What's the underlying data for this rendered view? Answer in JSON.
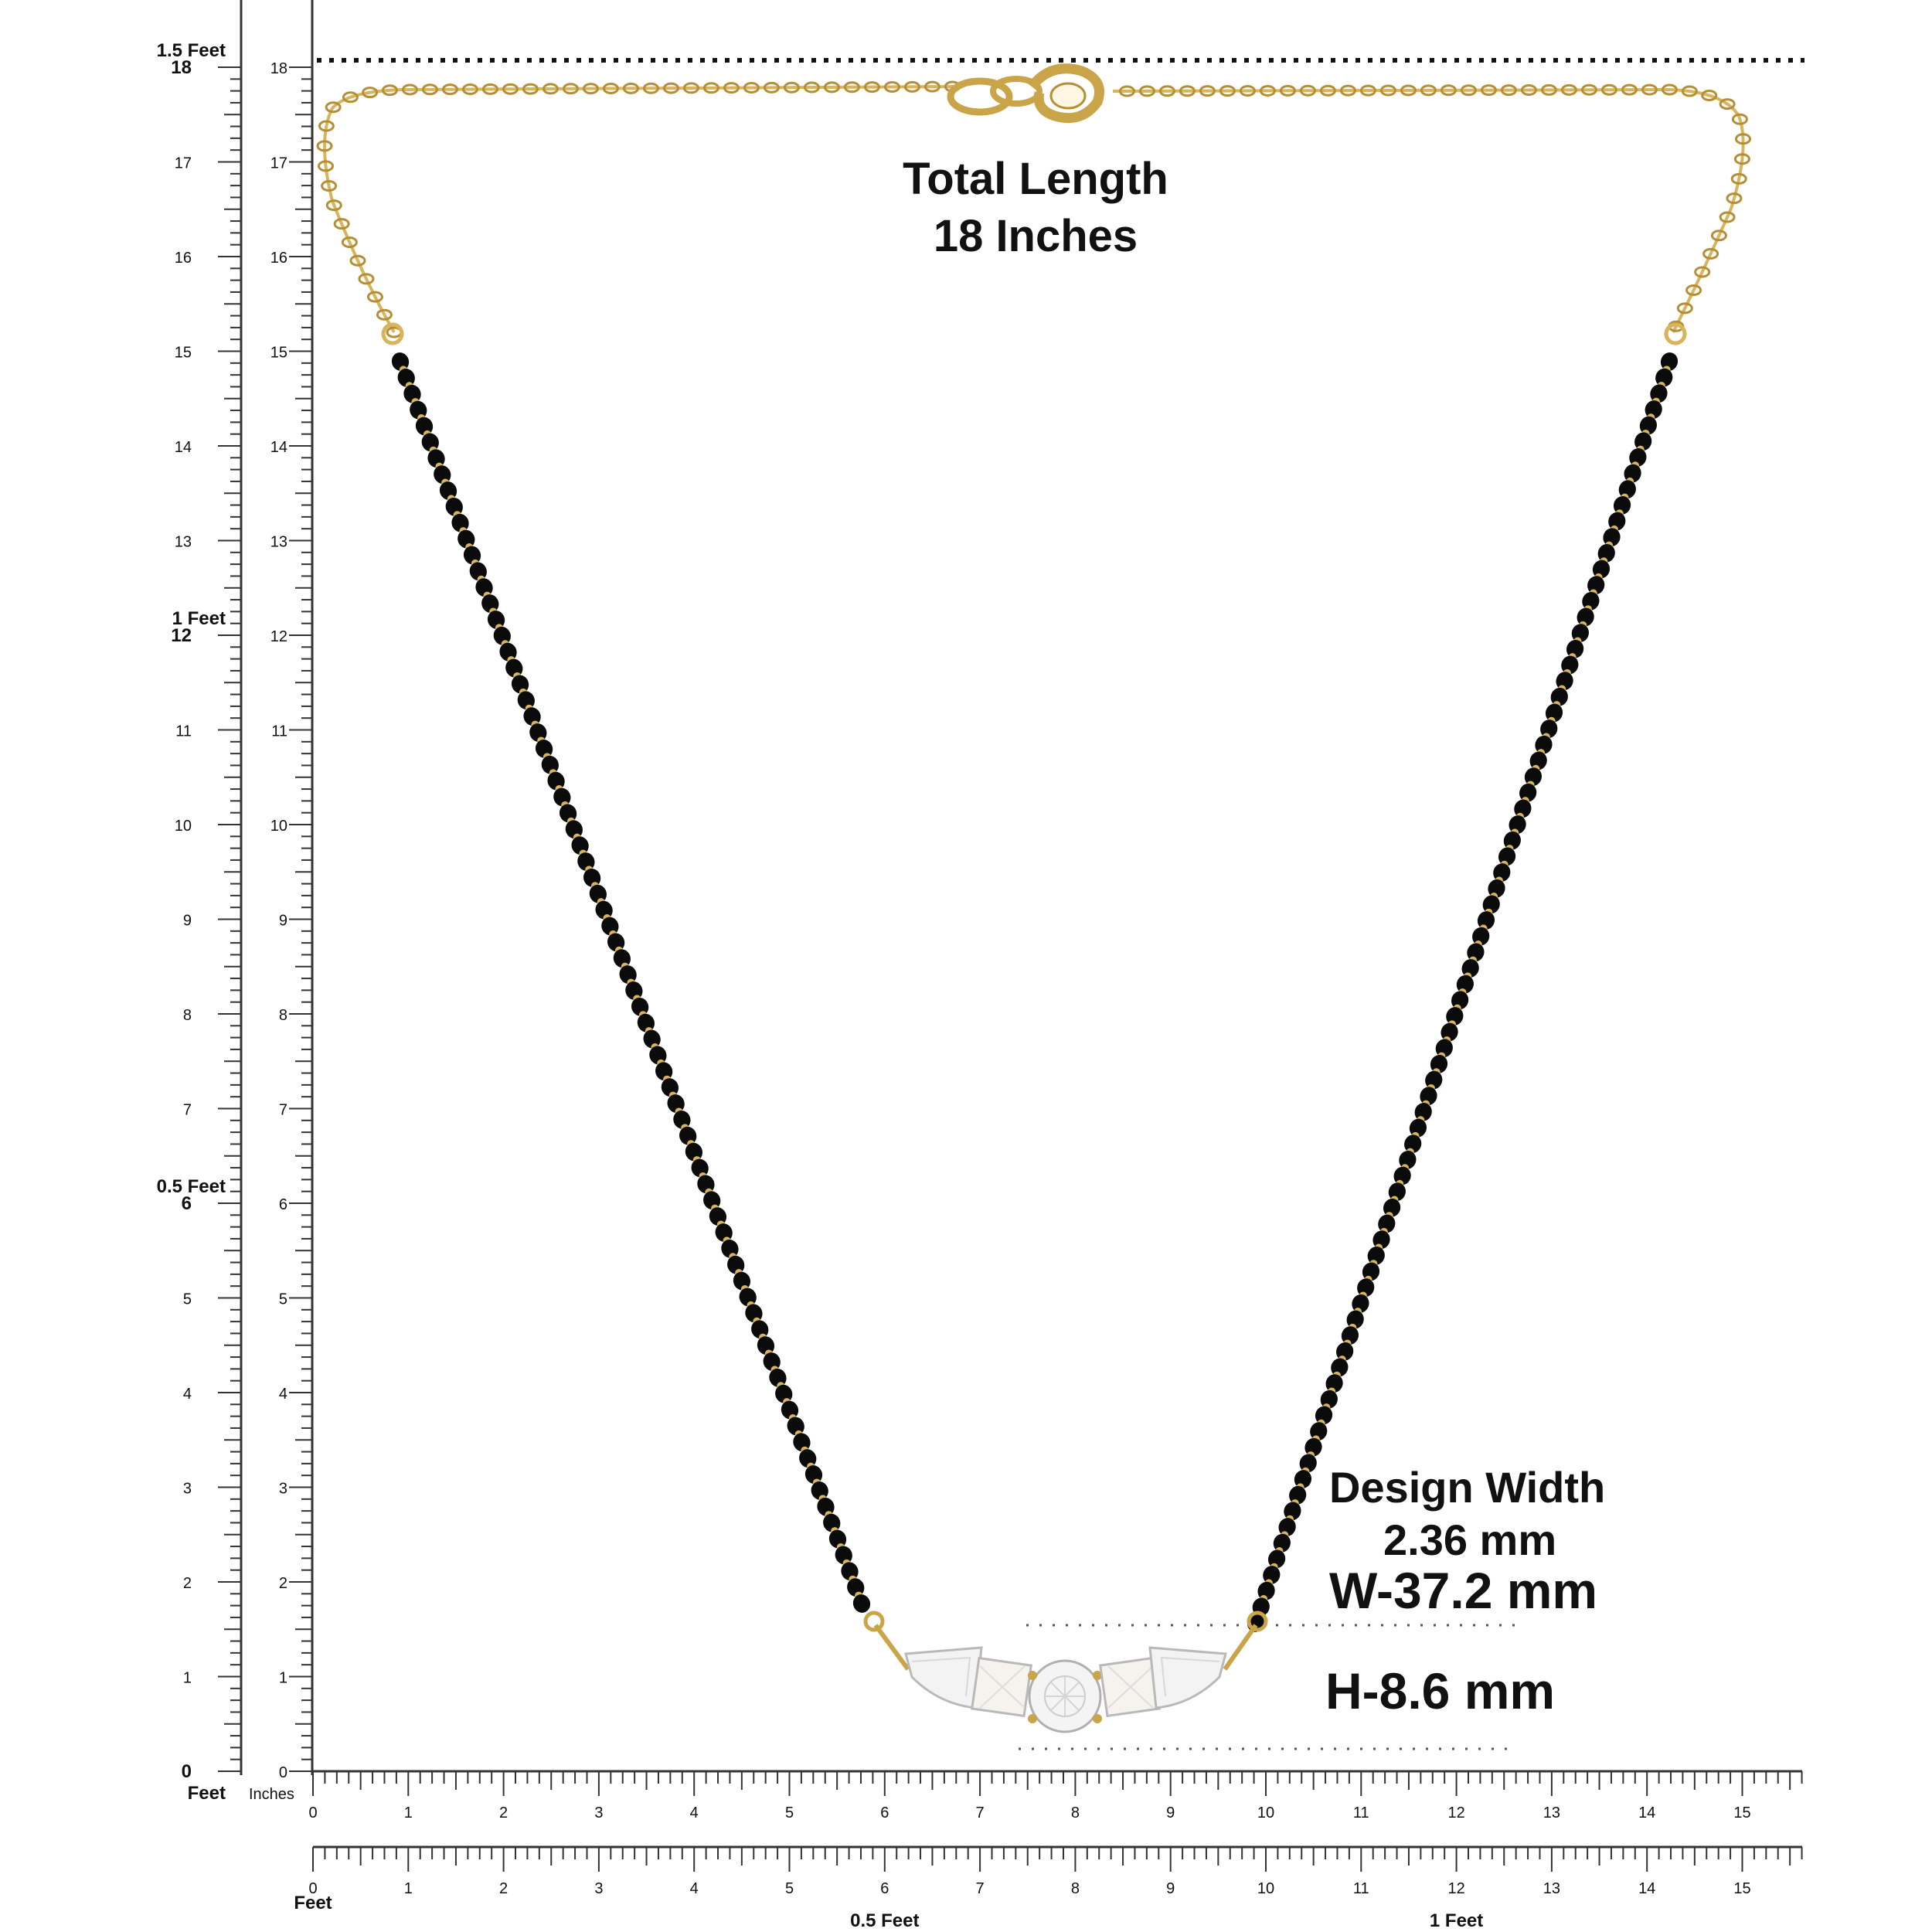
{
  "title": {
    "line1": "Total Length",
    "line2": "18 Inches"
  },
  "design_width": {
    "label": "Design Width",
    "value": "2.36 mm"
  },
  "dimensions": {
    "width": "W-37.2 mm",
    "height": "H-8.6 mm"
  },
  "rulers": {
    "vertical_labels": [
      "0",
      "1",
      "2",
      "3",
      "4",
      "5",
      "6",
      "7",
      "8",
      "9",
      "10",
      "11",
      "12",
      "13",
      "14",
      "15",
      "16",
      "17",
      "18"
    ],
    "horizontal_labels": [
      "0",
      "1",
      "2",
      "3",
      "4",
      "5",
      "6",
      "7",
      "8",
      "9",
      "10",
      "11",
      "12",
      "13",
      "14",
      "15"
    ],
    "feet_markers_vertical": [
      {
        "inch": 0,
        "label": "Feet"
      },
      {
        "inch": 6,
        "label": "0.5 Feet"
      },
      {
        "inch": 12,
        "label": "1 Feet"
      },
      {
        "inch": 18,
        "label": "1.5 Feet"
      }
    ],
    "feet_markers_horizontal": [
      {
        "inch": 0,
        "label": "Feet"
      },
      {
        "inch": 6,
        "label": "0.5 Feet"
      },
      {
        "inch": 12,
        "label": "1 Feet"
      }
    ],
    "unit_label": "Inches"
  },
  "colors": {
    "gold": "#D8B45A",
    "gold_dark": "#B58E35",
    "bead": "#0B0B0B",
    "ruler": "#333333",
    "stone": "#F2F2F2"
  }
}
